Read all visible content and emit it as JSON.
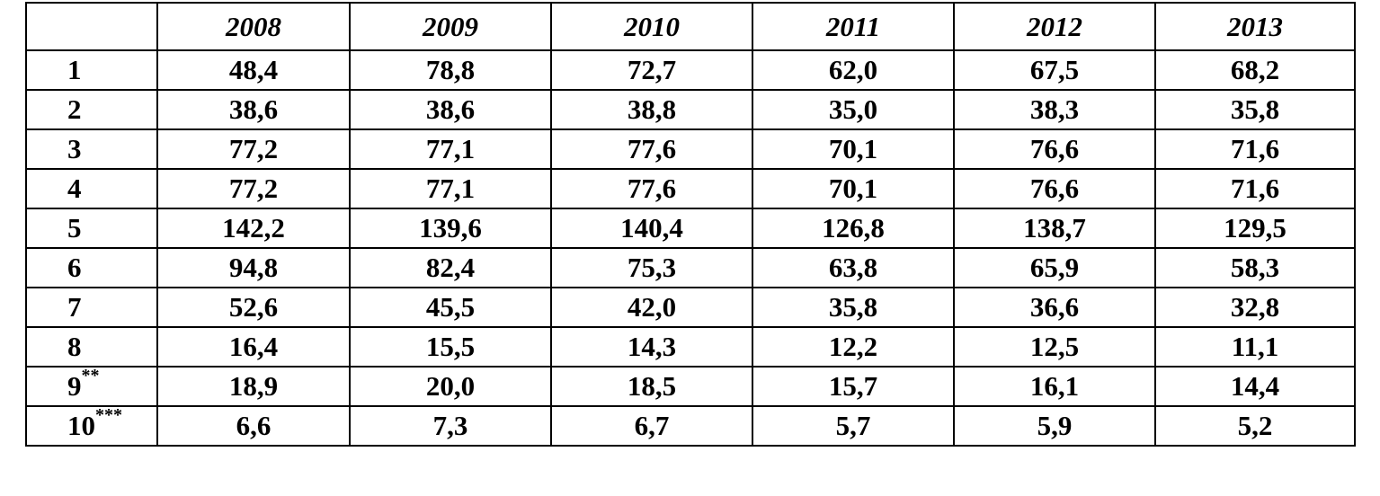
{
  "table": {
    "header": [
      "2008",
      "2009",
      "2010",
      "2011",
      "2012",
      "2013"
    ],
    "rows": [
      {
        "label": "1",
        "values": [
          "48,4",
          "78,8",
          "72,7",
          "62,0",
          "67,5",
          "68,2"
        ]
      },
      {
        "label": "2",
        "values": [
          "38,6",
          "38,6",
          "38,8",
          "35,0",
          "38,3",
          "35,8"
        ]
      },
      {
        "label": "3",
        "values": [
          "77,2",
          "77,1",
          "77,6",
          "70,1",
          "76,6",
          "71,6"
        ]
      },
      {
        "label": "4",
        "values": [
          "77,2",
          "77,1",
          "77,6",
          "70,1",
          "76,6",
          "71,6"
        ]
      },
      {
        "label": "5",
        "values": [
          "142,2",
          "139,6",
          "140,4",
          "126,8",
          "138,7",
          "129,5"
        ]
      },
      {
        "label": "6",
        "values": [
          "94,8",
          "82,4",
          "75,3",
          "63,8",
          "65,9",
          "58,3"
        ]
      },
      {
        "label": "7",
        "values": [
          "52,6",
          "45,5",
          "42,0",
          "35,8",
          "36,6",
          "32,8"
        ]
      },
      {
        "label": "8",
        "values": [
          "16,4",
          "15,5",
          "14,3",
          "12,2",
          "12,5",
          "11,1"
        ]
      },
      {
        "label": "9",
        "sup": "**",
        "values": [
          "18,9",
          "20,0",
          "18,5",
          "15,7",
          "16,1",
          "14,4"
        ]
      },
      {
        "label": "10",
        "sup": "***",
        "values": [
          "6,6",
          "7,3",
          "6,7",
          "5,7",
          "5,9",
          "5,2"
        ]
      }
    ]
  }
}
